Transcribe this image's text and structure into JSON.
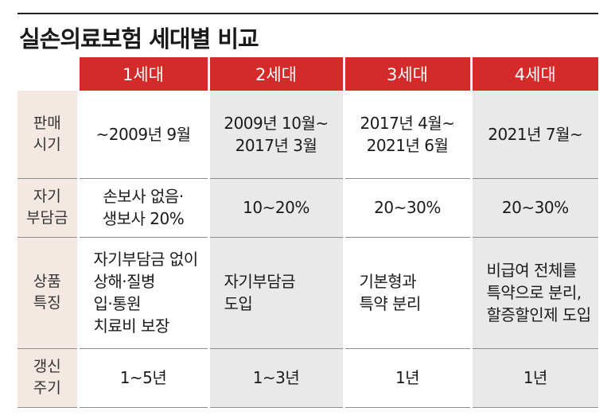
{
  "title": "실손의료보험 세대별 비교",
  "columns": [
    "1세대",
    "2세대",
    "3세대",
    "4세대"
  ],
  "rows": [
    {
      "label": [
        "판매",
        "시기"
      ],
      "cells": [
        [
          "~2009년 9월"
        ],
        [
          "2009년 10월~",
          "2017년 3월"
        ],
        [
          "2017년 4월~",
          "2021년 6월"
        ],
        [
          "2021년 7월~"
        ]
      ]
    },
    {
      "label": [
        "자기",
        "부담금"
      ],
      "cells": [
        [
          "손보사 없음·",
          "생보사 20%"
        ],
        [
          "10~20%"
        ],
        [
          "20~30%"
        ],
        [
          "20~30%"
        ]
      ]
    },
    {
      "label": [
        "상품",
        "특징"
      ],
      "cells": [
        [
          "자기부담금 없이",
          "상해·질병",
          "입·통원",
          "치료비 보장"
        ],
        [
          "자기부담금",
          "도입"
        ],
        [
          "기본형과",
          "특약 분리"
        ],
        [
          "비급여 전체를",
          "특약으로 분리,",
          "할증할인제 도입"
        ]
      ]
    },
    {
      "label": [
        "갱신",
        "주기"
      ],
      "cells": [
        [
          "1~5년"
        ],
        [
          "1~3년"
        ],
        [
          "1년"
        ],
        [
          "1년"
        ]
      ]
    }
  ],
  "colors": {
    "header_red": "#d42a2a",
    "label_bg": "#f4e8e2",
    "alt_column_bg": "#e9e9e9"
  }
}
